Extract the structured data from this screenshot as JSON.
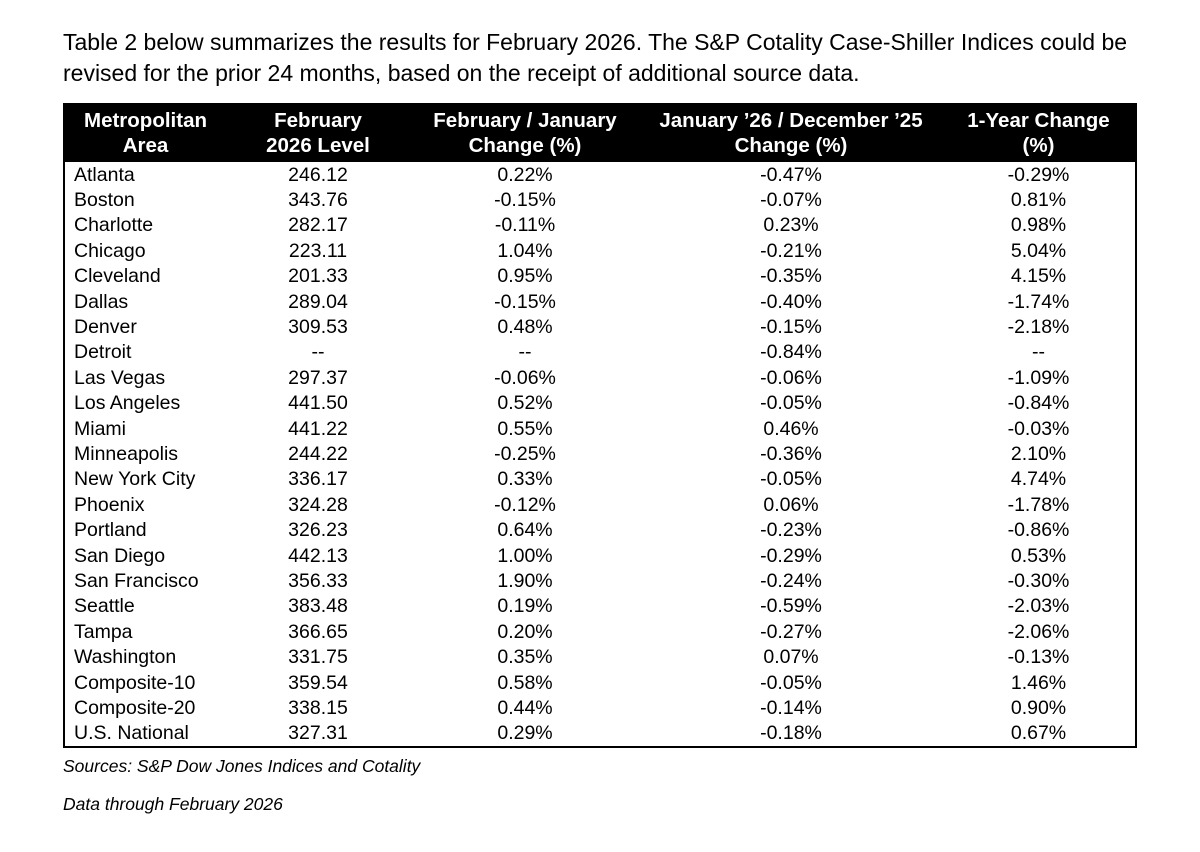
{
  "intro": "Table 2 below summarizes the results for February 2026. The S&P Cotality Case-Shiller Indices could be revised for the prior 24 months, based on the receipt of additional source data.",
  "table": {
    "headers": [
      {
        "text": "Metropolitan\nArea"
      },
      {
        "text": "February\n2026 Level"
      },
      {
        "text": "February / January\nChange (%)"
      },
      {
        "text": "January ’26 / December ’25\nChange (%)"
      },
      {
        "text": "1-Year Change\n(%)"
      }
    ],
    "rows": [
      {
        "area": "Atlanta",
        "level": "246.12",
        "feb_jan": "0.22%",
        "jan_dec": "-0.47%",
        "one_year": "-0.29%"
      },
      {
        "area": "Boston",
        "level": "343.76",
        "feb_jan": "-0.15%",
        "jan_dec": "-0.07%",
        "one_year": "0.81%"
      },
      {
        "area": "Charlotte",
        "level": "282.17",
        "feb_jan": "-0.11%",
        "jan_dec": "0.23%",
        "one_year": "0.98%"
      },
      {
        "area": "Chicago",
        "level": "223.11",
        "feb_jan": "1.04%",
        "jan_dec": "-0.21%",
        "one_year": "5.04%"
      },
      {
        "area": "Cleveland",
        "level": "201.33",
        "feb_jan": "0.95%",
        "jan_dec": "-0.35%",
        "one_year": "4.15%"
      },
      {
        "area": "Dallas",
        "level": "289.04",
        "feb_jan": "-0.15%",
        "jan_dec": "-0.40%",
        "one_year": "-1.74%"
      },
      {
        "area": "Denver",
        "level": "309.53",
        "feb_jan": "0.48%",
        "jan_dec": "-0.15%",
        "one_year": "-2.18%"
      },
      {
        "area": "Detroit",
        "level": "--",
        "feb_jan": "--",
        "jan_dec": "-0.84%",
        "one_year": "--"
      },
      {
        "area": "Las Vegas",
        "level": "297.37",
        "feb_jan": "-0.06%",
        "jan_dec": "-0.06%",
        "one_year": "-1.09%"
      },
      {
        "area": "Los Angeles",
        "level": "441.50",
        "feb_jan": "0.52%",
        "jan_dec": "-0.05%",
        "one_year": "-0.84%"
      },
      {
        "area": "Miami",
        "level": "441.22",
        "feb_jan": "0.55%",
        "jan_dec": "0.46%",
        "one_year": "-0.03%"
      },
      {
        "area": "Minneapolis",
        "level": "244.22",
        "feb_jan": "-0.25%",
        "jan_dec": "-0.36%",
        "one_year": "2.10%"
      },
      {
        "area": "New York City",
        "level": "336.17",
        "feb_jan": "0.33%",
        "jan_dec": "-0.05%",
        "one_year": "4.74%"
      },
      {
        "area": "Phoenix",
        "level": "324.28",
        "feb_jan": "-0.12%",
        "jan_dec": "0.06%",
        "one_year": "-1.78%"
      },
      {
        "area": "Portland",
        "level": "326.23",
        "feb_jan": "0.64%",
        "jan_dec": "-0.23%",
        "one_year": "-0.86%"
      },
      {
        "area": "San Diego",
        "level": "442.13",
        "feb_jan": "1.00%",
        "jan_dec": "-0.29%",
        "one_year": "0.53%"
      },
      {
        "area": "San Francisco",
        "level": "356.33",
        "feb_jan": "1.90%",
        "jan_dec": "-0.24%",
        "one_year": "-0.30%"
      },
      {
        "area": "Seattle",
        "level": "383.48",
        "feb_jan": "0.19%",
        "jan_dec": "-0.59%",
        "one_year": "-2.03%"
      },
      {
        "area": "Tampa",
        "level": "366.65",
        "feb_jan": "0.20%",
        "jan_dec": "-0.27%",
        "one_year": "-2.06%"
      },
      {
        "area": "Washington",
        "level": "331.75",
        "feb_jan": "0.35%",
        "jan_dec": "0.07%",
        "one_year": "-0.13%"
      },
      {
        "area": "Composite-10",
        "level": "359.54",
        "feb_jan": "0.58%",
        "jan_dec": "-0.05%",
        "one_year": "1.46%"
      },
      {
        "area": "Composite-20",
        "level": "338.15",
        "feb_jan": "0.44%",
        "jan_dec": "-0.14%",
        "one_year": "0.90%"
      },
      {
        "area": "U.S. National",
        "level": "327.31",
        "feb_jan": "0.29%",
        "jan_dec": "-0.18%",
        "one_year": "0.67%"
      }
    ]
  },
  "footer": {
    "sources": "Sources: S&P Dow Jones Indices and Cotality",
    "data_through": "Data through February 2026"
  }
}
